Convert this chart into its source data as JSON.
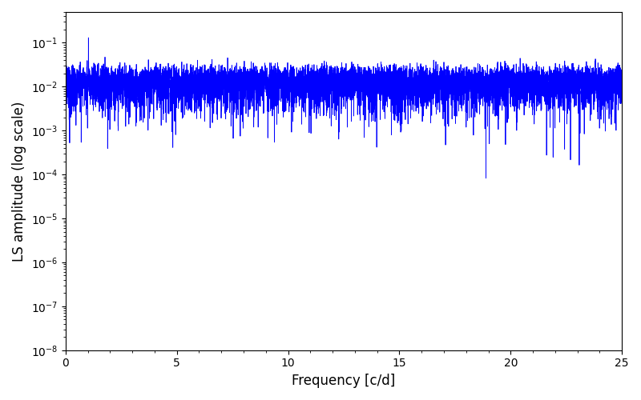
{
  "xlabel": "Frequency [c/d]",
  "ylabel": "LS amplitude (log scale)",
  "xlim": [
    0,
    25
  ],
  "ylim": [
    1e-08,
    0.5
  ],
  "line_color": "#0000ff",
  "line_width": 0.6,
  "background_color": "#ffffff",
  "freq_min": 0.0,
  "freq_max": 25.0,
  "n_freq": 8000,
  "seed": 137
}
